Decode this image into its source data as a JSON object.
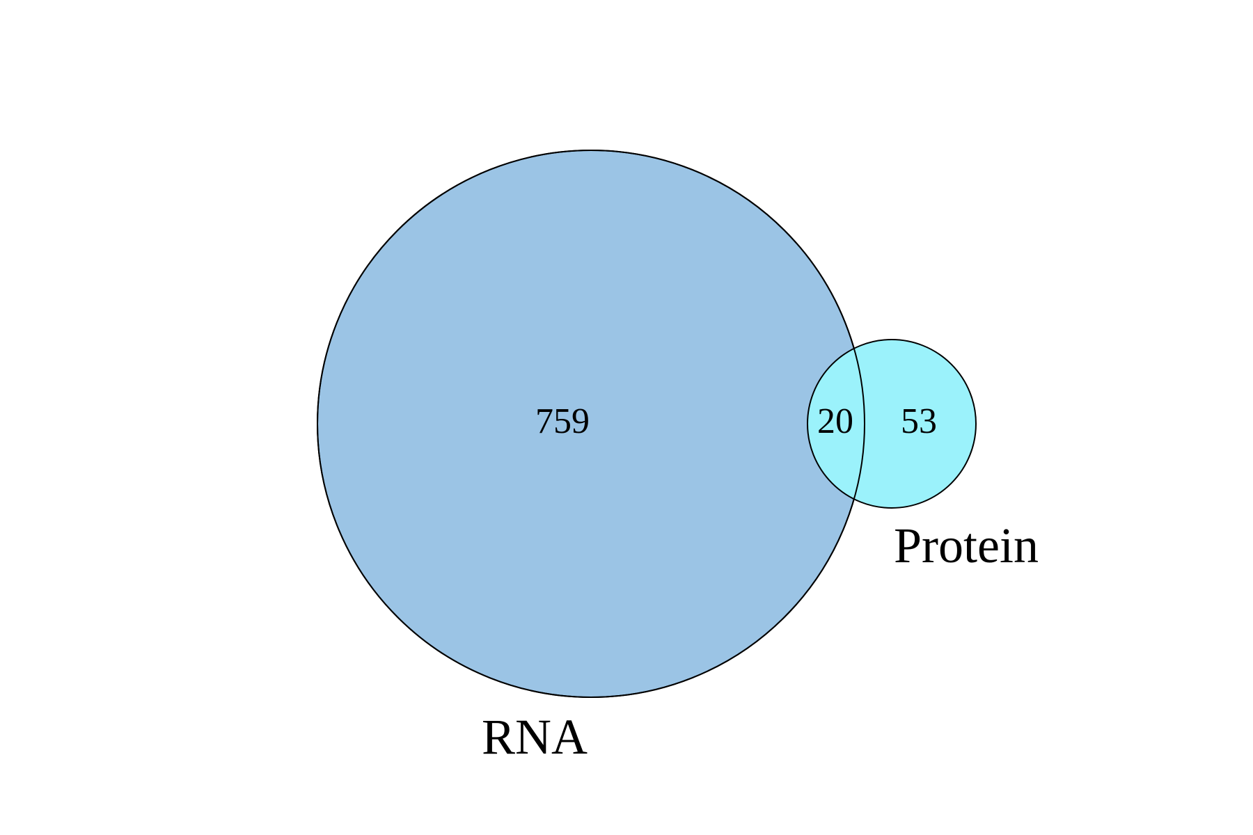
{
  "diagram": {
    "type": "venn",
    "sets": [
      {
        "id": "rna",
        "label": "RNA",
        "only_count": "759",
        "fill": "#9bc4e5",
        "stroke": "#000000"
      },
      {
        "id": "protein",
        "label": "Protein",
        "only_count": "53",
        "fill": "#9bf2fb",
        "stroke": "#000000"
      }
    ],
    "intersection": {
      "count": "20"
    }
  }
}
